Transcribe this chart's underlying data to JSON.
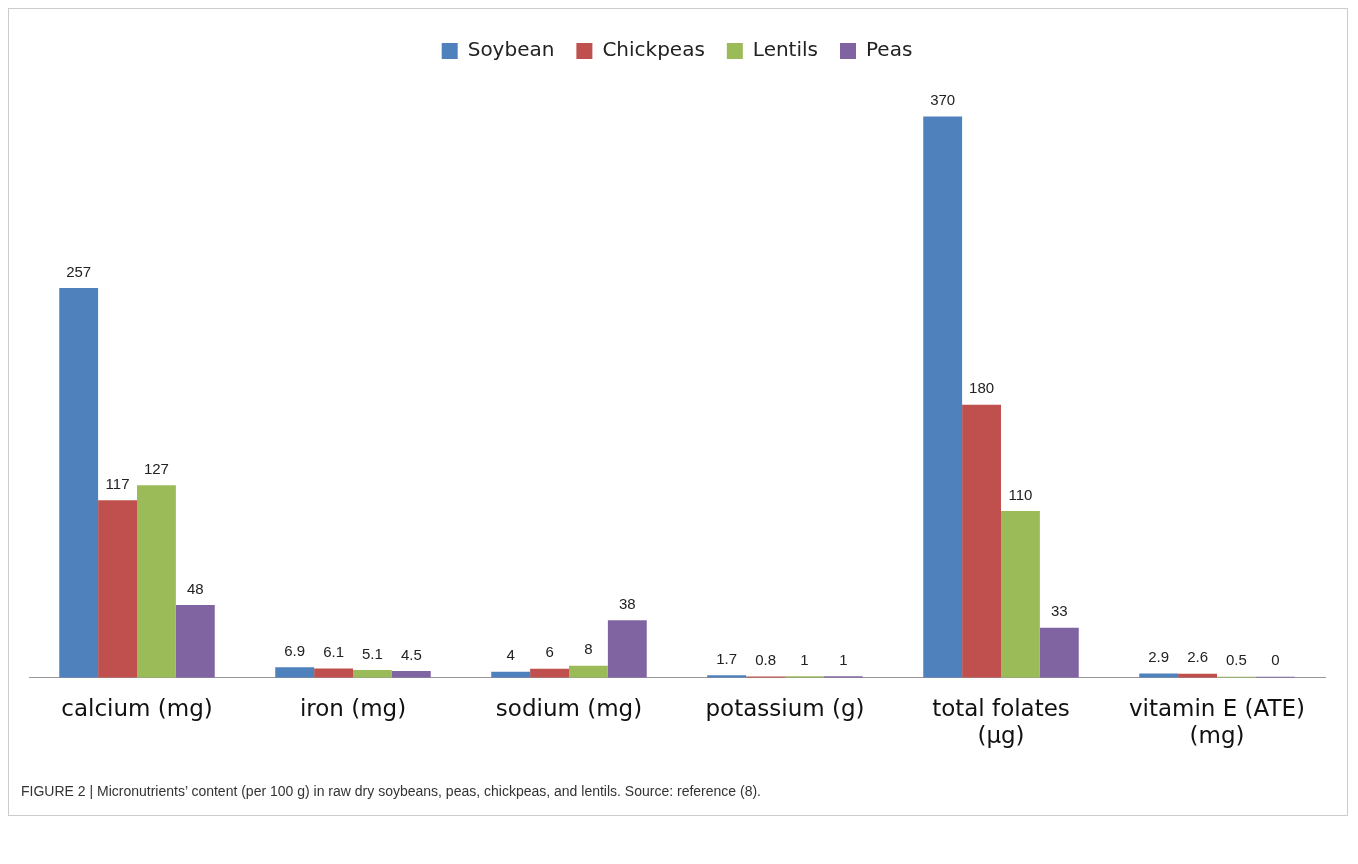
{
  "chart_data": {
    "type": "bar",
    "categories": [
      "calcium (mg)",
      "iron (mg)",
      "sodium (mg)",
      "potassium (g)",
      "total folates (µg)",
      "vitamin E (ATE) (mg)"
    ],
    "series": [
      {
        "name": "Soybean",
        "color": "#4f81bd",
        "values": [
          257,
          6.9,
          4,
          1.7,
          370,
          2.9
        ]
      },
      {
        "name": "Chickpeas",
        "color": "#c0504d",
        "values": [
          117,
          6.1,
          6,
          0.8,
          180,
          2.6
        ]
      },
      {
        "name": "Lentils",
        "color": "#9bbb59",
        "values": [
          127,
          5.1,
          8,
          1,
          110,
          0.5
        ]
      },
      {
        "name": "Peas",
        "color": "#8064a2",
        "values": [
          48,
          4.5,
          38,
          1,
          33,
          0
        ]
      }
    ],
    "data_labels": true,
    "legend": "top",
    "grid": false,
    "tick_labels": "x",
    "annotations": [
      "FIGURE 2 | Micronutrients’ content (per 100 g) in raw dry soybeans, peas, chickpeas, and lentils. Source: reference (8)."
    ]
  }
}
